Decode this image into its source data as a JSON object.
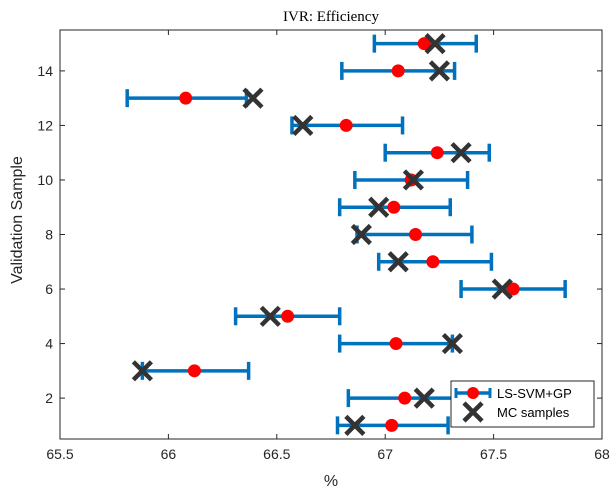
{
  "chart_data": {
    "type": "errorbar",
    "title": "IVR: Efficiency",
    "xlabel": "%",
    "ylabel": "Validation Sample",
    "xlim": [
      65.5,
      68
    ],
    "ylim": [
      0.5,
      15.5
    ],
    "xticks": [
      "65.5",
      "66",
      "66.5",
      "67",
      "67.5",
      "68"
    ],
    "yticks": [
      "2",
      "4",
      "6",
      "8",
      "10",
      "12",
      "14"
    ],
    "grid": false,
    "legend_position": "bottom-right",
    "colors": {
      "errorbar": "#0072BD",
      "marker": "#FF0000",
      "mc": "#333333"
    },
    "series": [
      {
        "name": "LS-SVM+GP",
        "points": [
          {
            "y": 1,
            "x": 67.03,
            "lo": 66.78,
            "hi": 67.29
          },
          {
            "y": 2,
            "x": 67.09,
            "lo": 66.83,
            "hi": 67.34
          },
          {
            "y": 3,
            "x": 66.12,
            "lo": 65.88,
            "hi": 66.37
          },
          {
            "y": 4,
            "x": 67.05,
            "lo": 66.79,
            "hi": 67.31
          },
          {
            "y": 5,
            "x": 66.55,
            "lo": 66.31,
            "hi": 66.79
          },
          {
            "y": 6,
            "x": 67.59,
            "lo": 67.35,
            "hi": 67.83
          },
          {
            "y": 7,
            "x": 67.22,
            "lo": 66.97,
            "hi": 67.49
          },
          {
            "y": 8,
            "x": 67.14,
            "lo": 66.87,
            "hi": 67.4
          },
          {
            "y": 9,
            "x": 67.04,
            "lo": 66.79,
            "hi": 67.3
          },
          {
            "y": 10,
            "x": 67.12,
            "lo": 66.86,
            "hi": 67.38
          },
          {
            "y": 11,
            "x": 67.24,
            "lo": 67.0,
            "hi": 67.48
          },
          {
            "y": 12,
            "x": 66.82,
            "lo": 66.57,
            "hi": 67.08
          },
          {
            "y": 13,
            "x": 66.08,
            "lo": 65.81,
            "hi": 66.36
          },
          {
            "y": 14,
            "x": 67.06,
            "lo": 66.8,
            "hi": 67.32
          },
          {
            "y": 15,
            "x": 67.18,
            "lo": 66.95,
            "hi": 67.42
          }
        ]
      },
      {
        "name": "MC samples",
        "points": [
          {
            "y": 1,
            "x": 66.86
          },
          {
            "y": 2,
            "x": 67.18
          },
          {
            "y": 3,
            "x": 65.88
          },
          {
            "y": 4,
            "x": 67.31
          },
          {
            "y": 5,
            "x": 66.47
          },
          {
            "y": 6,
            "x": 67.54
          },
          {
            "y": 7,
            "x": 67.06
          },
          {
            "y": 8,
            "x": 66.89
          },
          {
            "y": 9,
            "x": 66.97
          },
          {
            "y": 10,
            "x": 67.13
          },
          {
            "y": 11,
            "x": 67.35
          },
          {
            "y": 12,
            "x": 66.62
          },
          {
            "y": 13,
            "x": 66.39
          },
          {
            "y": 14,
            "x": 67.25
          },
          {
            "y": 15,
            "x": 67.23
          }
        ]
      }
    ]
  }
}
